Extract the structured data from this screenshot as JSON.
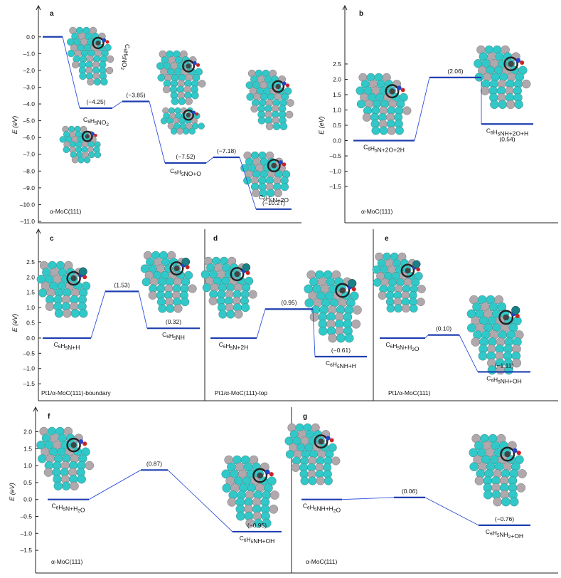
{
  "chart_data": [
    {
      "type": "line",
      "panel": "a",
      "title": "",
      "ylabel": "E (eV)",
      "ylim": [
        -11.0,
        0.5
      ],
      "yticks": [
        "0.0",
        "-1.0",
        "-2.0",
        "-3.0",
        "-4.0",
        "-5.0",
        "-6.0",
        "-7.0",
        "-8.0",
        "-9.0",
        "-10.0",
        "-11.0"
      ],
      "surface": "α-MoC(111)",
      "molecule_label": "C6H5NO2",
      "points": [
        {
          "value": 0.0,
          "label": "",
          "energy_label": ""
        },
        {
          "value": -4.25,
          "label": "C6H5NO2",
          "energy_label": "(−4.25)"
        },
        {
          "value": -3.85,
          "label": "",
          "energy_label": "(−3.85)"
        },
        {
          "value": -7.52,
          "label": "C6H5NO+O",
          "energy_label": "(−7.52)"
        },
        {
          "value": -7.18,
          "label": "",
          "energy_label": "(−7.18)"
        },
        {
          "value": -10.27,
          "label": "C6H5N+2O",
          "energy_label": "(−10.27)"
        }
      ]
    },
    {
      "type": "line",
      "panel": "b",
      "ylabel": "E (eV)",
      "ylim": [
        -1.8,
        2.8
      ],
      "yticks": [
        "2.5",
        "2.0",
        "1.5",
        "1.0",
        "0.5",
        "0.0",
        "-0.5",
        "-1.0",
        "-1.5"
      ],
      "surface": "α-MoC(111)",
      "points": [
        {
          "value": 0.0,
          "label": "C6H5N+2O+2H",
          "energy_label": ""
        },
        {
          "value": 2.06,
          "label": "",
          "energy_label": "(2.06)"
        },
        {
          "value": 0.54,
          "label": "C6H5NH+2O+H",
          "energy_label": "(0.54)"
        }
      ]
    },
    {
      "type": "line",
      "panel": "c",
      "ylabel": "E (eV)",
      "ylim": [
        -1.8,
        2.8
      ],
      "yticks": [
        "2.5",
        "2.0",
        "1.5",
        "1.0",
        "0.5",
        "0.0",
        "-0.5",
        "-1.0",
        "-1.5"
      ],
      "surface": "Pt1/α-MoC(111)-boundary",
      "points": [
        {
          "value": 0.0,
          "label": "C6H5N+H",
          "energy_label": ""
        },
        {
          "value": 1.53,
          "label": "",
          "energy_label": "(1.53)"
        },
        {
          "value": 0.32,
          "label": "C6H5NH",
          "energy_label": "(0.32)"
        }
      ]
    },
    {
      "type": "line",
      "panel": "d",
      "ylim": [
        -1.8,
        2.8
      ],
      "surface": "Pt1/α-MoC(111)-top",
      "points": [
        {
          "value": 0.0,
          "label": "C6H5N+2H",
          "energy_label": ""
        },
        {
          "value": 0.95,
          "label": "",
          "energy_label": "(0.95)"
        },
        {
          "value": -0.61,
          "label": "C6H5NH+H",
          "energy_label": "(−0.61)"
        }
      ]
    },
    {
      "type": "line",
      "panel": "e",
      "ylim": [
        -1.8,
        2.8
      ],
      "surface": "Pt1/α-MoC(111)",
      "points": [
        {
          "value": 0.0,
          "label": "C6H5N+H2O",
          "energy_label": ""
        },
        {
          "value": 0.1,
          "label": "",
          "energy_label": "(0.10)"
        },
        {
          "value": -1.11,
          "label": "C6H5NH+OH",
          "energy_label": "(−1.11)"
        }
      ]
    },
    {
      "type": "line",
      "panel": "f",
      "ylabel": "E (eV)",
      "ylim": [
        -1.75,
        2.2
      ],
      "yticks": [
        "2.0",
        "1.5",
        "1.0",
        "0.5",
        "0.0",
        "-0.5",
        "-1.0",
        "-1.5"
      ],
      "surface": "α-MoC(111)",
      "points": [
        {
          "value": 0.0,
          "label": "C6H5N+H2O",
          "energy_label": ""
        },
        {
          "value": 0.87,
          "label": "",
          "energy_label": "(0.87)"
        },
        {
          "value": -0.95,
          "label": "C6H5NH+OH",
          "energy_label": "(−0.95)"
        }
      ]
    },
    {
      "type": "line",
      "panel": "g",
      "ylim": [
        -1.75,
        2.2
      ],
      "surface": "α-MoC(111)",
      "points": [
        {
          "value": 0.0,
          "label": "C6H5NH+H2O",
          "energy_label": ""
        },
        {
          "value": 0.06,
          "label": "",
          "energy_label": "(0.06)"
        },
        {
          "value": -0.76,
          "label": "C6H5NH2+OH",
          "energy_label": "(−0.76)"
        }
      ]
    }
  ],
  "colors": {
    "level": "#1f3fb0",
    "connector": "#2d4fd8",
    "mo_atom": "#30c8c8",
    "c_atom": "#b0a8ad",
    "ring": "#222222",
    "n_atom": "#2244cc",
    "o_atom": "#cc2222",
    "pt_atom": "#1a7f86"
  }
}
